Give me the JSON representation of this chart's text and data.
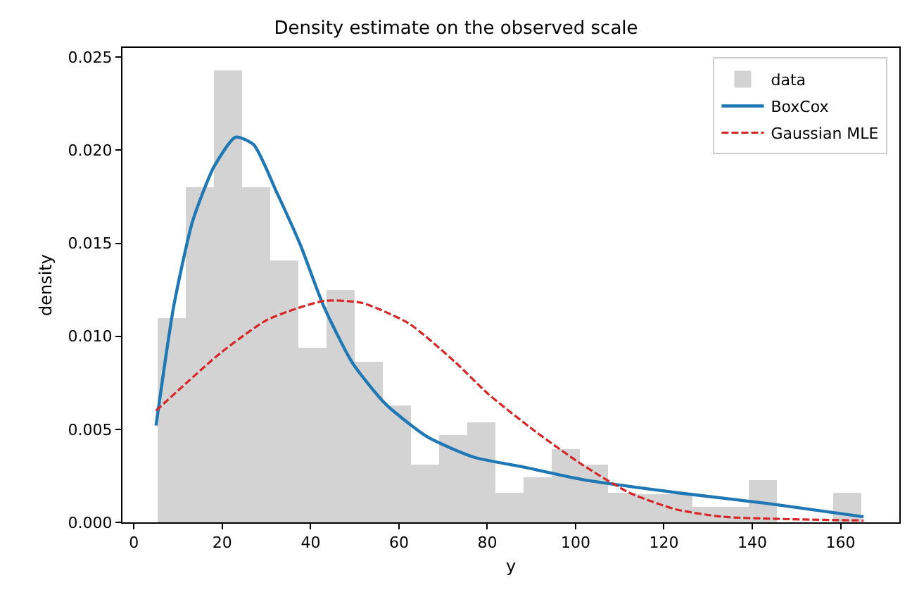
{
  "chart_data": {
    "type": "histogram",
    "title": "Density estimate on the observed scale",
    "xlabel": "y",
    "ylabel": "density",
    "bins": [
      5.4,
      11.77,
      18.14,
      24.51,
      30.88,
      37.25,
      43.62,
      49.99,
      56.36,
      62.73,
      69.1,
      75.47,
      81.84,
      88.21,
      94.58,
      100.95,
      107.32,
      113.69,
      120.06,
      126.43,
      132.8,
      139.17,
      145.54,
      151.91,
      158.28,
      164.65
    ],
    "series": [
      {
        "name": "data",
        "color": "#d3d3d3",
        "values": [
          0.011,
          0.018,
          0.0243,
          0.018,
          0.0141,
          0.0094,
          0.0125,
          0.0086,
          0.0063,
          0.0031,
          0.0047,
          0.0054,
          0.0016,
          0.0024,
          0.0039,
          0.0031,
          0.0016,
          0.0015,
          0.0015,
          0.0008,
          0.0008,
          0.0023,
          0,
          0,
          0.0016
        ]
      },
      {
        "name": "BoxCox",
        "type": "line",
        "color": "#1f77b4",
        "line_style": "solid",
        "x": [
          5.0,
          9.0,
          13.3,
          18.1,
          23.0,
          27.1,
          32.4,
          37.7,
          43.0,
          49.4,
          56.8,
          66.4,
          77.0,
          87.6,
          101.5,
          122.7,
          144.0,
          165.2
        ],
        "values": [
          0.0052,
          0.0116,
          0.0162,
          0.0191,
          0.0207,
          0.0203,
          0.0177,
          0.0149,
          0.0116,
          0.0086,
          0.0064,
          0.0046,
          0.0035,
          0.003,
          0.0023,
          0.0016,
          0.001,
          0.0003
        ]
      },
      {
        "name": "Gaussian MLE",
        "type": "line",
        "color": "#d62728",
        "line_style": "dashed",
        "x": [
          5.0,
          19.6,
          30.3,
          43.0,
          51.5,
          62.2,
          72.8,
          80.2,
          90.8,
          101.5,
          112.1,
          122.7,
          133.3,
          165.2
        ],
        "values": [
          0.006,
          0.0091,
          0.0109,
          0.0119,
          0.0118,
          0.0107,
          0.0086,
          0.0069,
          0.0049,
          0.0031,
          0.0016,
          0.0007,
          0.0003,
          0.0001
        ]
      }
    ],
    "xlim": [
      -2.6,
      173.3
    ],
    "ylim": [
      0,
      0.0255
    ],
    "xticks": [
      0,
      20,
      40,
      60,
      80,
      100,
      120,
      140,
      160
    ],
    "yticks": [
      {
        "value": 0,
        "label": "0.000"
      },
      {
        "value": 0.005,
        "label": "0.005"
      },
      {
        "value": 0.01,
        "label": "0.010"
      },
      {
        "value": 0.015,
        "label": "0.015"
      },
      {
        "value": 0.02,
        "label": "0.020"
      },
      {
        "value": 0.025,
        "label": "0.025"
      }
    ],
    "legend": "top right",
    "grid": false
  }
}
